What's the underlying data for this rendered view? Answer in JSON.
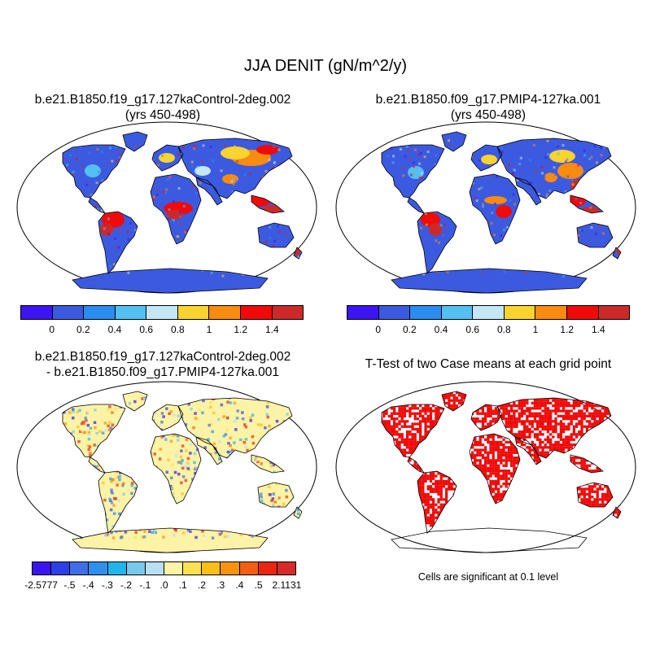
{
  "title": "JJA DENIT (gN/m^2/y)",
  "panels": [
    {
      "title_line1": "b.e21.B1850.f19_g17.127kaControl-2deg.002",
      "title_line2": "(yrs 450-498)"
    },
    {
      "title_line1": "b.e21.B1850.f09_g17.PMIP4-127ka.001",
      "title_line2": "(yrs 450-498)"
    },
    {
      "title_line1": "b.e21.B1850.f19_g17.127kaControl-2deg.002",
      "title_line2": "- b.e21.B1850.f09_g17.PMIP4-127ka.001"
    },
    {
      "title_line1": "T-Test of two Case means at each grid point",
      "title_line2": ""
    }
  ],
  "colorbar_abs": {
    "colors": [
      "#3d14f2",
      "#3c5ae0",
      "#2a8cee",
      "#54bff2",
      "#c4e6f5",
      "#f9d330",
      "#f98a12",
      "#f00a0a",
      "#cc2a2a"
    ],
    "labels": [
      "0",
      "0.2",
      "0.4",
      "0.6",
      "0.8",
      "1",
      "1.2",
      "1.4"
    ]
  },
  "colorbar_diff": {
    "colors": [
      "#3a14ef",
      "#2f3fe8",
      "#3f6ee6",
      "#2e90ec",
      "#22b4ec",
      "#77c9ec",
      "#b9e0f0",
      "#fdf3a6",
      "#fde051",
      "#fbbf17",
      "#f8930e",
      "#f45e12",
      "#e9270f",
      "#d72a2a"
    ],
    "labels": [
      "-2.5777",
      "-.5",
      "-.4",
      "-.3",
      "-.2",
      "-.1",
      ".0",
      ".1",
      ".2",
      ".3",
      ".4",
      ".5",
      "2.1131"
    ]
  },
  "significance_note": "Cells are significant at 0.1 level",
  "map_colors": {
    "ocean": "#ffffff",
    "land_base_abs": "#3c5ae0",
    "hot_abs": "#f00a0a",
    "land_base_diff": "#fdf3a6",
    "sig": "#f00a0a"
  }
}
